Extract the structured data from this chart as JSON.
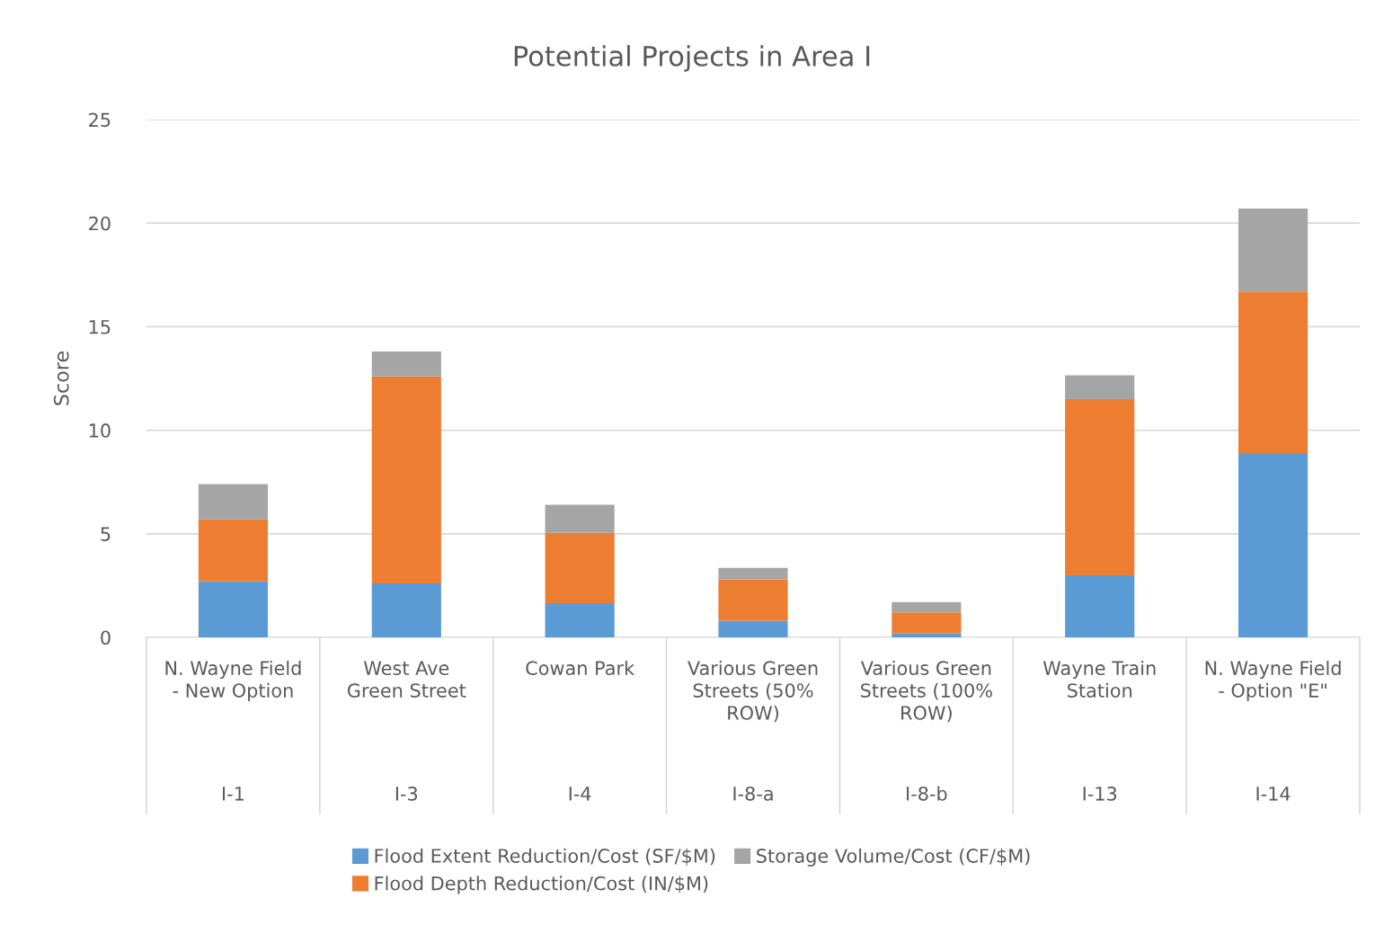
{
  "chart_data": {
    "type": "bar",
    "title": "Potential Projects in Area I",
    "ylabel": "Score",
    "stacked": true,
    "categories": [
      "N. Wayne Field\n- New Option\nI-1",
      "West Ave\nGreen Street\nI-3",
      "Cowan Park\nI-4",
      "Various Green\nStreets (50%\nROW)\nI-8-a",
      "Various Green\nStreets (100%\nROW)\nI-8-b",
      "Wayne Train\nStation\nI-13",
      "N. Wayne Field\n- Option \"E\"\nI-14"
    ],
    "series": [
      {
        "name": "Flood Extent Reduction/Cost (SF/$M)",
        "color": "#5b9bd5",
        "values": [
          2.7,
          2.6,
          1.65,
          0.8,
          0.2,
          3.0,
          8.9
        ]
      },
      {
        "name": "Flood Depth Reduction/Cost (IN/$M)",
        "color": "#ed7d31",
        "values": [
          3.0,
          10.0,
          3.4,
          2.0,
          1.0,
          8.5,
          7.8
        ]
      },
      {
        "name": "Storage Volume/Cost (CF/$M)",
        "color": "#a5a5a5",
        "values": [
          1.7,
          1.2,
          1.35,
          0.55,
          0.5,
          1.15,
          4.0
        ]
      }
    ],
    "ylim": [
      0,
      25
    ],
    "yticks": [
      0,
      5,
      10,
      15,
      20,
      25
    ],
    "grid": "y",
    "legend": "bottom"
  }
}
